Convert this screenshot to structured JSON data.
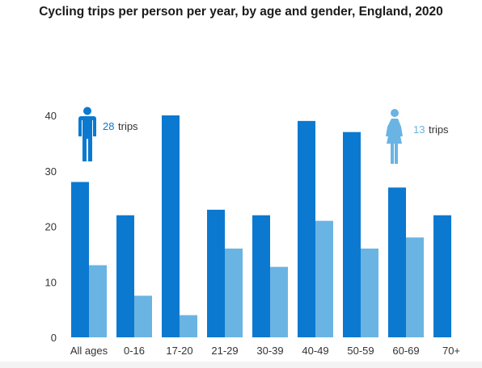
{
  "chart_data": {
    "type": "bar",
    "title": "Cycling trips per person per year, by age and gender, England, 2020",
    "categories": [
      "All ages",
      "0-16",
      "17-20",
      "21-29",
      "30-39",
      "40-49",
      "50-59",
      "60-69",
      "70+"
    ],
    "series": [
      {
        "name": "",
        "color": "#0b79d0",
        "values": [
          28,
          22,
          40,
          23,
          22,
          39,
          37,
          27,
          22
        ]
      },
      {
        "name": "",
        "color": "#6ab4e3",
        "values": [
          13,
          7.5,
          4,
          16,
          12.7,
          21,
          16,
          18,
          null
        ]
      }
    ],
    "yticks": [
      0,
      10,
      20,
      30,
      40
    ],
    "ylim": [
      0,
      40
    ],
    "grid": false,
    "legend": "none",
    "callouts": {
      "male": {
        "icon": "man-icon",
        "value": "28",
        "unit": "trips",
        "color": "#0b79d0"
      },
      "female": {
        "icon": "woman-icon",
        "value": "13",
        "unit": "trips",
        "color": "#6ab4e3"
      }
    }
  }
}
